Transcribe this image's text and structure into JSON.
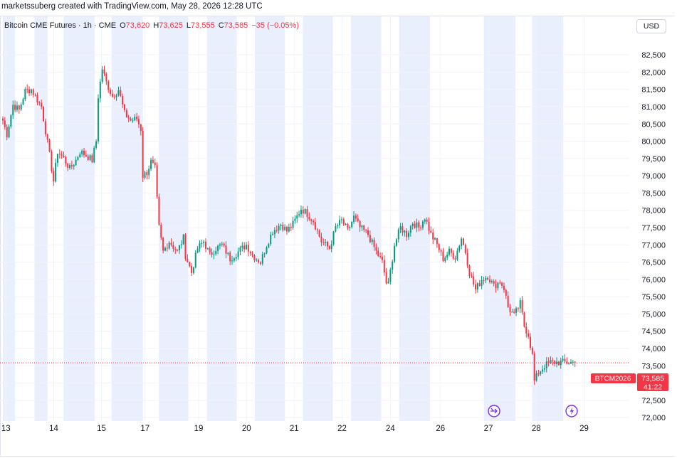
{
  "credit": "marketssuberg created with TradingView.com, May 28, 2026 12:28 UTC",
  "legend": {
    "symbol": "Bitcoin CME Futures · 1h · CME",
    "open_label": "O",
    "open": "73,620",
    "high_label": "H",
    "high": "73,625",
    "low_label": "L",
    "low": "73,555",
    "close_label": "C",
    "close": "73,585",
    "change": "−35 (−0.05%)"
  },
  "currency_button": "USD",
  "price_tag": {
    "ticker": "BTCM2026",
    "price": "73,585",
    "countdown": "41:22"
  },
  "colors": {
    "up": "#089981",
    "down": "#f23645",
    "session_shade": "#e9effd",
    "grid": "#f0f3fa",
    "price_line": "#f23645",
    "event_icon": "#7b2ff7"
  },
  "icons": [
    "split-arrow-icon",
    "lightning-icon"
  ],
  "chart_data": {
    "type": "candlestick",
    "title": "Bitcoin CME Futures · 1h · CME",
    "ylim": [
      71900,
      83100
    ],
    "y_ticks": [
      72000,
      72500,
      73000,
      73500,
      74000,
      74500,
      75000,
      75500,
      76000,
      76500,
      77000,
      77500,
      78000,
      78500,
      79000,
      79500,
      80000,
      80500,
      81000,
      81500,
      82000,
      82500
    ],
    "y_tick_labels": [
      "72,000",
      "72,500",
      "73,000",
      "73,500",
      "74,000",
      "74,500",
      "75,000",
      "75,500",
      "76,000",
      "76,500",
      "77,000",
      "77,500",
      "78,000",
      "78,500",
      "79,000",
      "79,500",
      "80,000",
      "80,500",
      "81,000",
      "81,500",
      "82,000",
      "82,500"
    ],
    "x_ticks": [
      {
        "label": "13",
        "pos": 1.5
      },
      {
        "label": "14",
        "pos": 25.1
      },
      {
        "label": "15",
        "pos": 48.6
      },
      {
        "label": "17",
        "pos": 70.1
      },
      {
        "label": "19",
        "pos": 96.5
      },
      {
        "label": "20",
        "pos": 120.1
      },
      {
        "label": "21",
        "pos": 143.6
      },
      {
        "label": "22",
        "pos": 167.2
      },
      {
        "label": "24",
        "pos": 191.0
      },
      {
        "label": "26",
        "pos": 215.7
      },
      {
        "label": "27",
        "pos": 239.3
      },
      {
        "label": "28",
        "pos": 262.9
      },
      {
        "label": "29",
        "pos": 286.5
      }
    ],
    "sessions": [
      [
        0,
        6
      ],
      [
        15.6,
        22.0
      ],
      [
        29.9,
        45.3
      ],
      [
        53.6,
        69.0
      ],
      [
        76.9,
        91.4
      ],
      [
        100.6,
        115.3
      ],
      [
        124.2,
        139.0
      ],
      [
        147.9,
        162.6
      ],
      [
        171.6,
        186.5
      ],
      [
        195.3,
        210.5
      ],
      [
        237.1,
        252.7
      ],
      [
        260.9,
        276.2
      ]
    ],
    "bar_count": 283,
    "current_price": 73585,
    "key_points": [
      [
        0,
        80600
      ],
      [
        2,
        80200
      ],
      [
        5,
        81050
      ],
      [
        8,
        80900
      ],
      [
        11,
        81450
      ],
      [
        14,
        81500
      ],
      [
        17,
        81200
      ],
      [
        19,
        81000
      ],
      [
        21,
        80300
      ],
      [
        23,
        79600
      ],
      [
        25,
        78850
      ],
      [
        27,
        79700
      ],
      [
        30,
        79500
      ],
      [
        33,
        79200
      ],
      [
        36,
        79450
      ],
      [
        38,
        79700
      ],
      [
        41,
        79600
      ],
      [
        44,
        79450
      ],
      [
        46,
        80000
      ],
      [
        47,
        81300
      ],
      [
        49,
        82100
      ],
      [
        51,
        81700
      ],
      [
        54,
        81300
      ],
      [
        57,
        81500
      ],
      [
        60,
        80800
      ],
      [
        63,
        80600
      ],
      [
        66,
        80650
      ],
      [
        68,
        80350
      ],
      [
        69,
        79000
      ],
      [
        71,
        79100
      ],
      [
        73,
        79400
      ],
      [
        75,
        79200
      ],
      [
        76,
        78300
      ],
      [
        77,
        77500
      ],
      [
        79,
        76800
      ],
      [
        82,
        77100
      ],
      [
        86,
        76800
      ],
      [
        89,
        77200
      ],
      [
        90,
        76700
      ],
      [
        93,
        76200
      ],
      [
        96,
        76900
      ],
      [
        99,
        77100
      ],
      [
        102,
        76700
      ],
      [
        105,
        76900
      ],
      [
        108,
        77000
      ],
      [
        112,
        76600
      ],
      [
        116,
        76800
      ],
      [
        120,
        77000
      ],
      [
        123,
        76700
      ],
      [
        127,
        76500
      ],
      [
        130,
        77000
      ],
      [
        133,
        77400
      ],
      [
        137,
        77600
      ],
      [
        140,
        77400
      ],
      [
        143,
        77600
      ],
      [
        147,
        78050
      ],
      [
        150,
        77900
      ],
      [
        153,
        77700
      ],
      [
        157,
        77100
      ],
      [
        161,
        76900
      ],
      [
        164,
        77500
      ],
      [
        167,
        77700
      ],
      [
        170,
        77400
      ],
      [
        173,
        77800
      ],
      [
        176,
        77500
      ],
      [
        180,
        77300
      ],
      [
        184,
        76800
      ],
      [
        187,
        76500
      ],
      [
        189,
        75900
      ],
      [
        190,
        75850
      ],
      [
        193,
        77000
      ],
      [
        196,
        77500
      ],
      [
        199,
        77300
      ],
      [
        202,
        77650
      ],
      [
        205,
        77500
      ],
      [
        208,
        77800
      ],
      [
        211,
        77300
      ],
      [
        214,
        77000
      ],
      [
        217,
        76600
      ],
      [
        220,
        76800
      ],
      [
        223,
        76650
      ],
      [
        226,
        77200
      ],
      [
        228,
        76800
      ],
      [
        230,
        76200
      ],
      [
        233,
        75700
      ],
      [
        236,
        76000
      ],
      [
        239,
        76100
      ],
      [
        242,
        75800
      ],
      [
        245,
        75950
      ],
      [
        247,
        75750
      ],
      [
        249,
        75200
      ],
      [
        252,
        74950
      ],
      [
        255,
        75300
      ],
      [
        257,
        74650
      ],
      [
        259,
        74400
      ],
      [
        261,
        73800
      ],
      [
        262,
        73050
      ],
      [
        264,
        73300
      ],
      [
        267,
        73500
      ],
      [
        270,
        73600
      ],
      [
        273,
        73600
      ]
    ]
  }
}
